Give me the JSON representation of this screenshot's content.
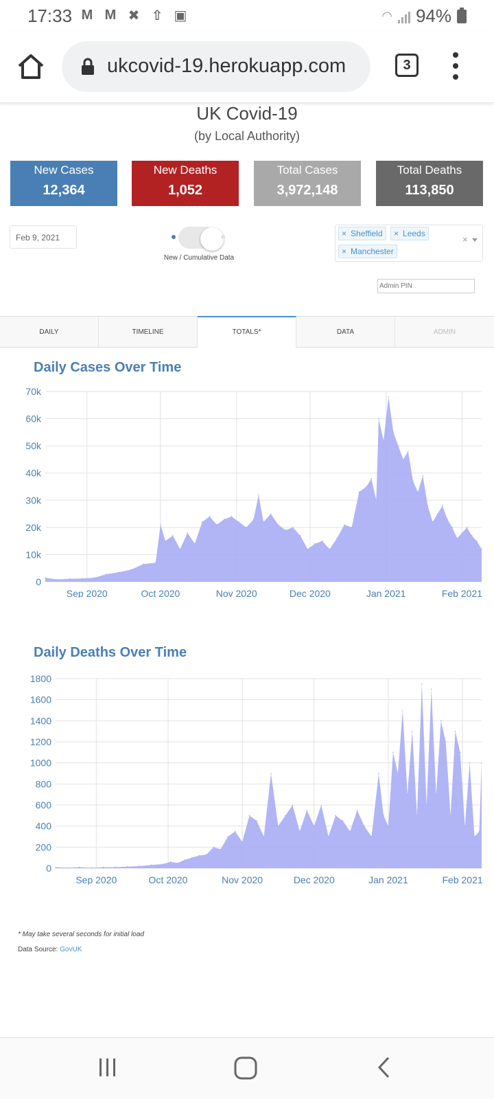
{
  "status_bar": {
    "time": "17:33",
    "battery": "94%",
    "notification_icons": [
      "gmail-icon",
      "gmail-icon",
      "app-icon",
      "upload-icon",
      "image-icon"
    ]
  },
  "browser": {
    "url": "ukcovid-19.herokuapp.com",
    "tab_count": "3"
  },
  "header": {
    "title": "UK Covid-19",
    "subtitle": "(by Local Authority)"
  },
  "stats": [
    {
      "label": "New Cases",
      "value": "12,364",
      "color": "#4a7fb5"
    },
    {
      "label": "New Deaths",
      "value": "1,052",
      "color": "#b22222"
    },
    {
      "label": "Total Cases",
      "value": "3,972,148",
      "color": "#a9a9a9"
    },
    {
      "label": "Total Deaths",
      "value": "113,850",
      "color": "#696969"
    }
  ],
  "controls": {
    "date": "Feb 9, 2021",
    "toggle_label": "New / Cumulative Data",
    "selected_areas": [
      "Sheffield",
      "Leeds",
      "Manchester"
    ],
    "admin_pin_placeholder": "Admin PIN"
  },
  "tabs": [
    {
      "label": "DAILY",
      "active": false
    },
    {
      "label": "TIMELINE",
      "active": false
    },
    {
      "label": "TOTALS*",
      "active": true
    },
    {
      "label": "DATA",
      "active": false
    },
    {
      "label": "ADMIN",
      "active": false
    }
  ],
  "chart_data": [
    {
      "type": "area",
      "title": "Daily Cases Over Time",
      "x_ticks": [
        "Sep 2020",
        "Oct 2020",
        "Nov 2020",
        "Dec 2020",
        "Jan 2021",
        "Feb 2021"
      ],
      "y_ticks": [
        "0",
        "10k",
        "20k",
        "30k",
        "40k",
        "50k",
        "60k",
        "70k"
      ],
      "ylim": [
        0,
        70000
      ],
      "x_start": "2020-08-15",
      "x_end": "2021-02-09",
      "grid": true,
      "color": "#a9adf5",
      "x": [
        "2020-08-15",
        "2020-08-20",
        "2020-08-25",
        "2020-08-30",
        "2020-09-04",
        "2020-09-09",
        "2020-09-14",
        "2020-09-19",
        "2020-09-24",
        "2020-09-29",
        "2020-10-01",
        "2020-10-03",
        "2020-10-06",
        "2020-10-09",
        "2020-10-12",
        "2020-10-15",
        "2020-10-18",
        "2020-10-21",
        "2020-10-24",
        "2020-10-27",
        "2020-10-30",
        "2020-11-02",
        "2020-11-05",
        "2020-11-08",
        "2020-11-10",
        "2020-11-12",
        "2020-11-15",
        "2020-11-18",
        "2020-11-21",
        "2020-11-24",
        "2020-11-27",
        "2020-11-30",
        "2020-12-03",
        "2020-12-06",
        "2020-12-09",
        "2020-12-12",
        "2020-12-15",
        "2020-12-18",
        "2020-12-21",
        "2020-12-24",
        "2020-12-26",
        "2020-12-28",
        "2020-12-29",
        "2020-12-31",
        "2021-01-02",
        "2021-01-04",
        "2021-01-06",
        "2021-01-08",
        "2021-01-10",
        "2021-01-12",
        "2021-01-14",
        "2021-01-16",
        "2021-01-18",
        "2021-01-20",
        "2021-01-22",
        "2021-01-24",
        "2021-01-26",
        "2021-01-28",
        "2021-01-30",
        "2021-02-01",
        "2021-02-03",
        "2021-02-05",
        "2021-02-07",
        "2021-02-09"
      ],
      "values": [
        1500,
        900,
        1100,
        1200,
        1500,
        2800,
        3500,
        4500,
        6500,
        7000,
        21000,
        15000,
        17000,
        12000,
        18000,
        14000,
        22000,
        24000,
        21000,
        23000,
        24000,
        22000,
        20000,
        23000,
        32000,
        22000,
        25000,
        21000,
        19000,
        20000,
        17000,
        12000,
        14000,
        15000,
        12000,
        16000,
        21000,
        20000,
        33000,
        35000,
        38000,
        30000,
        60000,
        52000,
        68000,
        55000,
        50000,
        45000,
        48000,
        37000,
        33000,
        39000,
        28000,
        22000,
        25000,
        28000,
        23000,
        20000,
        16000,
        18000,
        20000,
        17000,
        15000,
        12000
      ]
    },
    {
      "type": "area",
      "title": "Daily Deaths Over Time",
      "x_ticks": [
        "Sep 2020",
        "Oct 2020",
        "Nov 2020",
        "Dec 2020",
        "Jan 2021",
        "Feb 2021"
      ],
      "y_ticks": [
        "0",
        "200",
        "400",
        "600",
        "800",
        "1000",
        "1200",
        "1400",
        "1600",
        "1800"
      ],
      "ylim": [
        0,
        1800
      ],
      "x_start": "2020-08-15",
      "x_end": "2021-02-09",
      "grid": true,
      "color": "#a9adf5",
      "x": [
        "2020-08-15",
        "2020-08-20",
        "2020-08-25",
        "2020-08-30",
        "2020-09-04",
        "2020-09-09",
        "2020-09-14",
        "2020-09-19",
        "2020-09-24",
        "2020-09-29",
        "2020-10-02",
        "2020-10-05",
        "2020-10-08",
        "2020-10-11",
        "2020-10-14",
        "2020-10-17",
        "2020-10-20",
        "2020-10-23",
        "2020-10-26",
        "2020-10-29",
        "2020-11-01",
        "2020-11-04",
        "2020-11-07",
        "2020-11-10",
        "2020-11-13",
        "2020-11-16",
        "2020-11-19",
        "2020-11-22",
        "2020-11-25",
        "2020-11-28",
        "2020-12-01",
        "2020-12-04",
        "2020-12-07",
        "2020-12-10",
        "2020-12-13",
        "2020-12-16",
        "2020-12-19",
        "2020-12-22",
        "2020-12-25",
        "2020-12-28",
        "2020-12-30",
        "2021-01-01",
        "2021-01-03",
        "2021-01-05",
        "2021-01-07",
        "2021-01-09",
        "2021-01-11",
        "2021-01-13",
        "2021-01-15",
        "2021-01-17",
        "2021-01-19",
        "2021-01-21",
        "2021-01-23",
        "2021-01-25",
        "2021-01-27",
        "2021-01-29",
        "2021-01-31",
        "2021-02-02",
        "2021-02-04",
        "2021-02-06",
        "2021-02-08",
        "2021-02-09"
      ],
      "values": [
        10,
        5,
        10,
        5,
        10,
        10,
        15,
        20,
        30,
        40,
        60,
        50,
        80,
        100,
        120,
        130,
        200,
        180,
        300,
        350,
        250,
        500,
        450,
        300,
        900,
        400,
        500,
        600,
        350,
        550,
        400,
        600,
        300,
        500,
        450,
        350,
        550,
        400,
        300,
        900,
        500,
        400,
        1100,
        900,
        1500,
        700,
        1300,
        500,
        1750,
        600,
        1700,
        700,
        1400,
        1200,
        500,
        1300,
        1100,
        400,
        1000,
        300,
        350,
        1000
      ]
    }
  ],
  "footer": {
    "note": "* May take several seconds for initial load",
    "source_label": "Data Source: ",
    "source_link": "GovUK"
  }
}
